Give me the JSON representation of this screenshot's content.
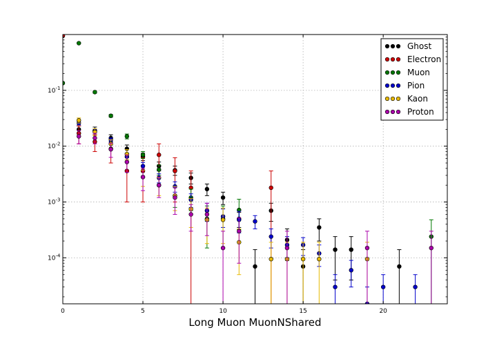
{
  "chart_data": {
    "type": "scatter",
    "title": "",
    "xlabel": "Long Muon MuonNShared",
    "ylabel": "",
    "xlim": [
      0,
      24
    ],
    "ylim": [
      1.5e-05,
      1.0
    ],
    "yscale": "log",
    "grid": true,
    "legend_position": "top-right",
    "x_ticks": [
      0,
      5,
      10,
      15,
      20
    ],
    "y_ticks": [
      {
        "value": 0.0001,
        "base": "10",
        "exp": "-4"
      },
      {
        "value": 0.001,
        "base": "10",
        "exp": "-3"
      },
      {
        "value": 0.01,
        "base": "10",
        "exp": "-2"
      },
      {
        "value": 0.1,
        "base": "10",
        "exp": "-1"
      }
    ],
    "series": [
      {
        "name": "Ghost",
        "color": "#000000",
        "points": [
          [
            0,
            0.95,
            0.02
          ],
          [
            1,
            0.02,
            0.003
          ],
          [
            2,
            0.019,
            0.003
          ],
          [
            3,
            0.014,
            0.002
          ],
          [
            4,
            0.009,
            0.0015
          ],
          [
            5,
            0.0065,
            0.001
          ],
          [
            6,
            0.0044,
            0.0008
          ],
          [
            7,
            0.0037,
            0.0007
          ],
          [
            8,
            0.0027,
            0.0006
          ],
          [
            9,
            0.0017,
            0.0004
          ],
          [
            10,
            0.0012,
            0.0003
          ],
          [
            11,
            0.0005,
            0.00015
          ],
          [
            12,
            7e-05,
            7e-05
          ],
          [
            13,
            0.0007,
            0.00025
          ],
          [
            14,
            0.00021,
            0.00012
          ],
          [
            15,
            7e-05,
            7e-05
          ],
          [
            16,
            0.00035,
            0.00015
          ],
          [
            17,
            0.00014,
            0.0001
          ],
          [
            18,
            0.00014,
            0.0001
          ],
          [
            21,
            7e-05,
            7e-05
          ]
        ]
      },
      {
        "name": "Electron",
        "color": "#cc0000",
        "points": [
          [
            0,
            0.95,
            0.02
          ],
          [
            1,
            0.017,
            0.006
          ],
          [
            2,
            0.012,
            0.004
          ],
          [
            3,
            0.009,
            0.004
          ],
          [
            4,
            0.0036,
            0.0026
          ],
          [
            5,
            0.0036,
            0.0026
          ],
          [
            6,
            0.007,
            0.004
          ],
          [
            7,
            0.0036,
            0.0026
          ],
          [
            8,
            0.0018,
            0.0018
          ],
          [
            13,
            0.0018,
            0.0018
          ]
        ]
      },
      {
        "name": "Muon",
        "color": "#007700",
        "points": [
          [
            0,
            0.135,
            0.004
          ],
          [
            1,
            0.7,
            0.01
          ],
          [
            2,
            0.093,
            0.004
          ],
          [
            3,
            0.035,
            0.002
          ],
          [
            4,
            0.015,
            0.0015
          ],
          [
            5,
            0.007,
            0.001
          ],
          [
            6,
            0.0038,
            0.0008
          ],
          [
            7,
            0.0013,
            0.0005
          ],
          [
            8,
            0.0012,
            0.0005
          ],
          [
            9,
            0.0005,
            0.00035
          ],
          [
            10,
            0.0005,
            0.00035
          ],
          [
            11,
            0.00072,
            0.0004
          ],
          [
            23,
            0.00024,
            0.00024
          ]
        ]
      },
      {
        "name": "Pion",
        "color": "#0000cc",
        "points": [
          [
            1,
            0.026,
            0.002
          ],
          [
            2,
            0.019,
            0.0015
          ],
          [
            3,
            0.013,
            0.0012
          ],
          [
            4,
            0.0065,
            0.0008
          ],
          [
            5,
            0.0044,
            0.0007
          ],
          [
            6,
            0.0027,
            0.0005
          ],
          [
            7,
            0.0019,
            0.0004
          ],
          [
            8,
            0.0011,
            0.0003
          ],
          [
            9,
            0.0007,
            0.00025
          ],
          [
            10,
            0.00055,
            0.0002
          ],
          [
            11,
            0.00048,
            0.0002
          ],
          [
            12,
            0.00045,
            0.00012
          ],
          [
            13,
            0.00024,
            9e-05
          ],
          [
            14,
            0.00017,
            7e-05
          ],
          [
            15,
            0.00017,
            6e-05
          ],
          [
            16,
            0.00012,
            5e-05
          ],
          [
            17,
            3e-05,
            2e-05
          ],
          [
            18,
            6e-05,
            3e-05
          ],
          [
            19,
            1.5e-05,
            1.5e-05
          ],
          [
            20,
            3e-05,
            2e-05
          ],
          [
            22,
            3e-05,
            2e-05
          ]
        ]
      },
      {
        "name": "Kaon",
        "color": "#e6b800",
        "points": [
          [
            1,
            0.029,
            0.003
          ],
          [
            2,
            0.018,
            0.0025
          ],
          [
            3,
            0.011,
            0.002
          ],
          [
            4,
            0.0072,
            0.0015
          ],
          [
            5,
            0.0028,
            0.0009
          ],
          [
            6,
            0.002,
            0.0007
          ],
          [
            7,
            0.0013,
            0.0006
          ],
          [
            8,
            0.00075,
            0.0004
          ],
          [
            9,
            0.00048,
            0.0003
          ],
          [
            10,
            0.00048,
            0.0003
          ],
          [
            11,
            0.00019,
            0.00014
          ],
          [
            13,
            9.5e-05,
            9.5e-05
          ],
          [
            14,
            9.5e-05,
            9.5e-05
          ],
          [
            15,
            9.5e-05,
            9.5e-05
          ],
          [
            16,
            9.5e-05,
            9.5e-05
          ],
          [
            19,
            9.5e-05,
            9.5e-05
          ]
        ]
      },
      {
        "name": "Proton",
        "color": "#aa00aa",
        "points": [
          [
            1,
            0.015,
            0.004
          ],
          [
            2,
            0.014,
            0.003
          ],
          [
            3,
            0.0088,
            0.0025
          ],
          [
            4,
            0.0052,
            0.0018
          ],
          [
            5,
            0.0028,
            0.0012
          ],
          [
            6,
            0.002,
            0.0008
          ],
          [
            7,
            0.0012,
            0.0006
          ],
          [
            8,
            0.0006,
            0.0003
          ],
          [
            9,
            0.0006,
            0.00035
          ],
          [
            10,
            0.00015,
            0.00015
          ],
          [
            11,
            0.0003,
            0.00022
          ],
          [
            14,
            0.00015,
            0.00015
          ],
          [
            19,
            0.00015,
            0.00015
          ],
          [
            23,
            0.00015,
            0.00015
          ]
        ]
      }
    ]
  }
}
